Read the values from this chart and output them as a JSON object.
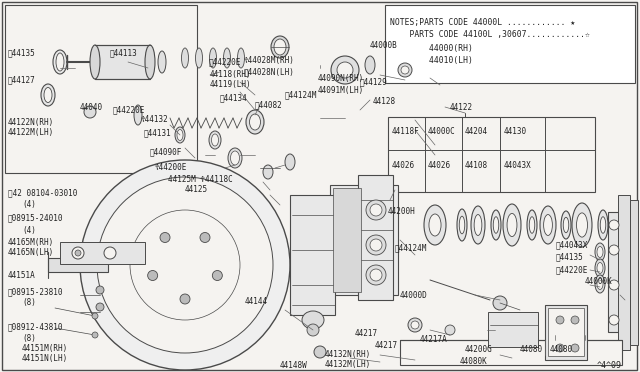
{
  "bg_color": "#f5f3f0",
  "line_color": "#4a4a4a",
  "text_color": "#222222",
  "fig_w": 6.4,
  "fig_h": 3.72,
  "dpi": 100,
  "notes_lines": [
    "NOTES;PARTS CODE 44000L ............ ★",
    "    PARTS CODE 44100L ,30607............☆",
    "        44000(RH)",
    "        44010(LH)"
  ],
  "bottom_right": "^4^09"
}
